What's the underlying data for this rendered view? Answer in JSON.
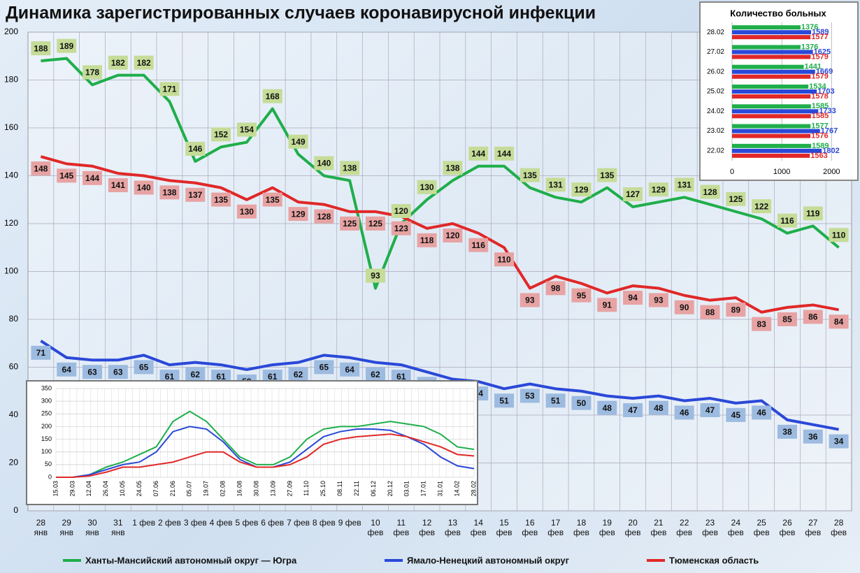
{
  "chart_data": [
    {
      "type": "line",
      "title": "Динамика зарегистрированных случаев коронавирусной инфекции",
      "categories": [
        "28 янв",
        "29 янв",
        "30 янв",
        "31 янв",
        "1 фев",
        "2 фев",
        "3 фев",
        "4 фев",
        "5 фев",
        "6 фев",
        "7 фев",
        "8 фев",
        "9 фев",
        "10 фев",
        "11 фев",
        "12 фев",
        "13 фев",
        "14 фев",
        "15 фев",
        "16 фев",
        "17 фев",
        "18 фев",
        "19 фев",
        "20 фев",
        "21 фев",
        "22 фев",
        "23 фев",
        "24 фев",
        "25 фев",
        "26 фев",
        "27 фев",
        "28 фев"
      ],
      "series": [
        {
          "name": "Ханты-Мансийский автономный округ — Югра",
          "color": "#1fae4b",
          "values": [
            188,
            189,
            178,
            182,
            182,
            171,
            146,
            152,
            154,
            168,
            149,
            140,
            138,
            93,
            120,
            130,
            138,
            144,
            144,
            135,
            131,
            129,
            135,
            127,
            129,
            131,
            128,
            125,
            122,
            116,
            119,
            110
          ]
        },
        {
          "name": "Ямало-Ненецкий автономный округ",
          "color": "#2a48d8",
          "values": [
            71,
            64,
            63,
            63,
            65,
            61,
            62,
            61,
            59,
            61,
            62,
            65,
            64,
            62,
            61,
            58,
            55,
            54,
            51,
            53,
            51,
            50,
            48,
            47,
            48,
            46,
            47,
            45,
            46,
            38,
            36,
            34
          ]
        },
        {
          "name": "Тюменская область",
          "color": "#e02828",
          "values": [
            148,
            145,
            144,
            141,
            140,
            138,
            137,
            135,
            130,
            135,
            129,
            128,
            125,
            125,
            123,
            118,
            120,
            116,
            110,
            93,
            98,
            95,
            91,
            94,
            93,
            90,
            88,
            89,
            83,
            85,
            86,
            84
          ]
        }
      ],
      "ylim": [
        0,
        200
      ],
      "yticks": [
        0,
        20,
        40,
        60,
        80,
        100,
        120,
        140,
        160,
        180,
        200
      ],
      "grid": true,
      "legend": "bottom"
    },
    {
      "type": "bar",
      "orientation": "horizontal",
      "title": "Количество больных",
      "categories": [
        "28.02",
        "27.02",
        "26.02",
        "25.02",
        "24.02",
        "23.02",
        "22.02"
      ],
      "series": [
        {
          "color": "#1fae4b",
          "values": [
            1376,
            1376,
            1441,
            1534,
            1585,
            1577,
            1589
          ]
        },
        {
          "color": "#2a48d8",
          "values": [
            1589,
            1625,
            1669,
            1703,
            1733,
            1767,
            1802
          ]
        },
        {
          "color": "#e02828",
          "values": [
            1577,
            1579,
            1579,
            1578,
            1585,
            1576,
            1563
          ]
        }
      ],
      "xlim": [
        0,
        2150
      ],
      "xticks": [
        0,
        1000,
        2000
      ],
      "grid": true
    },
    {
      "type": "line",
      "categories": [
        "15.03",
        "29.03",
        "12.04",
        "26.04",
        "10.05",
        "24.05",
        "07.06",
        "21.06",
        "05.07",
        "19.07",
        "02.08",
        "16.08",
        "30.08",
        "13.09",
        "27.09",
        "11.10",
        "25.10",
        "08.11",
        "22.11",
        "06.12",
        "20.12",
        "03.01",
        "17.01",
        "31.01",
        "14.02",
        "28.02"
      ],
      "series": [
        {
          "color": "#1fae4b",
          "values": [
            0,
            0,
            10,
            40,
            60,
            90,
            120,
            220,
            260,
            220,
            150,
            80,
            50,
            50,
            80,
            150,
            190,
            200,
            200,
            210,
            220,
            210,
            200,
            170,
            120,
            110
          ]
        },
        {
          "color": "#2a48d8",
          "values": [
            0,
            0,
            10,
            30,
            50,
            60,
            100,
            180,
            200,
            190,
            140,
            70,
            40,
            40,
            60,
            110,
            160,
            180,
            190,
            190,
            185,
            160,
            130,
            80,
            45,
            34
          ]
        },
        {
          "color": "#e02828",
          "values": [
            0,
            0,
            5,
            20,
            40,
            40,
            50,
            60,
            80,
            100,
            100,
            60,
            40,
            40,
            50,
            80,
            130,
            150,
            160,
            165,
            170,
            160,
            140,
            120,
            90,
            84
          ]
        }
      ],
      "ylim": [
        0,
        350
      ],
      "yticks": [
        0,
        50,
        100,
        150,
        200,
        250,
        300,
        350
      ],
      "grid": true
    }
  ]
}
